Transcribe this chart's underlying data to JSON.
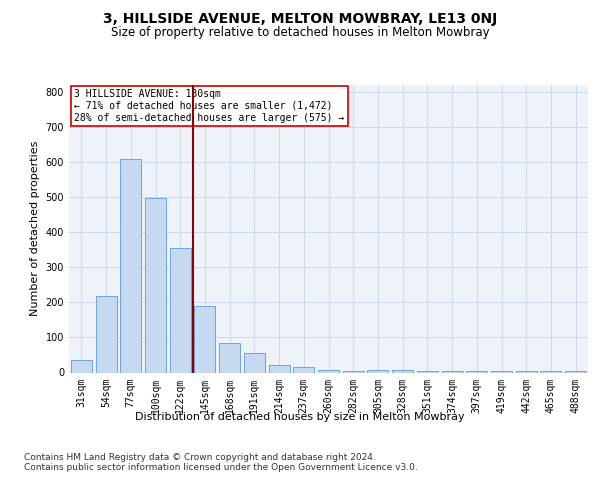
{
  "title": "3, HILLSIDE AVENUE, MELTON MOWBRAY, LE13 0NJ",
  "subtitle": "Size of property relative to detached houses in Melton Mowbray",
  "xlabel": "Distribution of detached houses by size in Melton Mowbray",
  "ylabel": "Number of detached properties",
  "categories": [
    "31sqm",
    "54sqm",
    "77sqm",
    "100sqm",
    "122sqm",
    "145sqm",
    "168sqm",
    "191sqm",
    "214sqm",
    "237sqm",
    "260sqm",
    "282sqm",
    "305sqm",
    "328sqm",
    "351sqm",
    "374sqm",
    "397sqm",
    "419sqm",
    "442sqm",
    "465sqm",
    "488sqm"
  ],
  "values": [
    35,
    218,
    610,
    497,
    355,
    190,
    85,
    55,
    22,
    17,
    8,
    5,
    8,
    8,
    5,
    5,
    5,
    3,
    3,
    3,
    3
  ],
  "bar_color": "#c6d9f0",
  "bar_edge_color": "#5b9bd5",
  "grid_color": "#d0d8e8",
  "bg_color": "#eef2f9",
  "vline_x": 4.5,
  "vline_color": "#8b0000",
  "annotation_text": "3 HILLSIDE AVENUE: 130sqm\n← 71% of detached houses are smaller (1,472)\n28% of semi-detached houses are larger (575) →",
  "annotation_box_color": "#ffffff",
  "annotation_box_edge": "#cc0000",
  "ylim": [
    0,
    820
  ],
  "yticks": [
    0,
    100,
    200,
    300,
    400,
    500,
    600,
    700,
    800
  ],
  "footer": "Contains HM Land Registry data © Crown copyright and database right 2024.\nContains public sector information licensed under the Open Government Licence v3.0.",
  "title_fontsize": 10,
  "subtitle_fontsize": 8.5,
  "axis_label_fontsize": 8,
  "tick_fontsize": 7,
  "annotation_fontsize": 7,
  "footer_fontsize": 6.5
}
